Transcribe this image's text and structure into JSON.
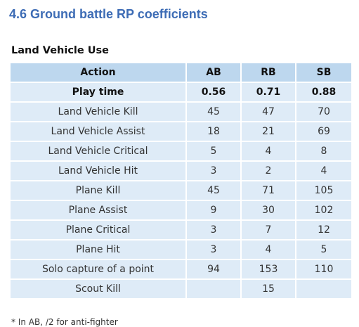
{
  "heading": "4.6 Ground battle RP coefficients",
  "caption": "Land Vehicle Use",
  "columns": [
    "Action",
    "AB",
    "RB",
    "SB"
  ],
  "rows": [
    {
      "action": "Play time",
      "ab": "0.56",
      "rb": "0.71",
      "sb": "0.88",
      "bold": true
    },
    {
      "action": "Land Vehicle Kill",
      "ab": "45",
      "rb": "47",
      "sb": "70"
    },
    {
      "action": "Land Vehicle Assist",
      "ab": "18",
      "rb": "21",
      "sb": "69"
    },
    {
      "action": "Land Vehicle Critical",
      "ab": "5",
      "rb": "4",
      "sb": "8"
    },
    {
      "action": "Land Vehicle Hit",
      "ab": "3",
      "rb": "2",
      "sb": "4"
    },
    {
      "action": "Plane Kill",
      "ab": "45",
      "rb": "71",
      "sb": "105"
    },
    {
      "action": "Plane Assist",
      "ab": "9",
      "rb": "30",
      "sb": "102"
    },
    {
      "action": "Plane Critical",
      "ab": "3",
      "rb": "7",
      "sb": "12"
    },
    {
      "action": "Plane Hit",
      "ab": "3",
      "rb": "4",
      "sb": "5"
    },
    {
      "action": "Solo capture of a point",
      "ab": "94",
      "rb": "153",
      "sb": "110"
    },
    {
      "action": "Scout Kill",
      "ab": "",
      "rb": "15",
      "sb": ""
    }
  ],
  "footnote": "* In AB, /2 for anti-fighter"
}
